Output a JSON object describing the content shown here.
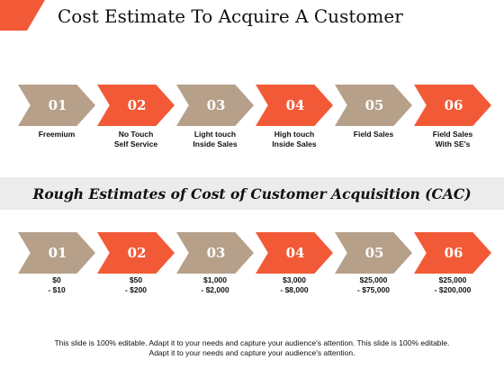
{
  "title": "Cost Estimate To Acquire A Customer",
  "colors": {
    "tan": "#b6a08a",
    "orange": "#f25a37",
    "band": "#ececec"
  },
  "row1": {
    "chevrons": [
      {
        "num": "01",
        "color": "tan"
      },
      {
        "num": "02",
        "color": "orange"
      },
      {
        "num": "03",
        "color": "tan"
      },
      {
        "num": "04",
        "color": "orange"
      },
      {
        "num": "05",
        "color": "tan"
      },
      {
        "num": "06",
        "color": "orange"
      }
    ],
    "labels": [
      {
        "l1": "Freemium",
        "l2": ""
      },
      {
        "l1": "No Touch",
        "l2": "Self Service"
      },
      {
        "l1": "Light touch",
        "l2": "Inside Sales"
      },
      {
        "l1": "High touch",
        "l2": "Inside Sales"
      },
      {
        "l1": "Field Sales",
        "l2": ""
      },
      {
        "l1": "Field Sales",
        "l2": "With SE's"
      }
    ]
  },
  "section_title": "Rough Estimates of Cost of Customer Acquisition (CAC)",
  "row2": {
    "chevrons": [
      {
        "num": "01",
        "color": "tan"
      },
      {
        "num": "02",
        "color": "orange"
      },
      {
        "num": "03",
        "color": "tan"
      },
      {
        "num": "04",
        "color": "orange"
      },
      {
        "num": "05",
        "color": "tan"
      },
      {
        "num": "06",
        "color": "orange"
      }
    ],
    "labels": [
      {
        "l1": "$0",
        "l2": "- $10"
      },
      {
        "l1": "$50",
        "l2": "- $200"
      },
      {
        "l1": "$1,000",
        "l2": "- $2,000"
      },
      {
        "l1": "$3,000",
        "l2": "- $8,000"
      },
      {
        "l1": "$25,000",
        "l2": "- $75,000"
      },
      {
        "l1": "$25,000",
        "l2": "- $200,000"
      }
    ]
  },
  "footer": {
    "line1": "This slide is 100% editable. Adapt it to your needs and capture your audience's attention. This slide is 100% editable.",
    "line2": "Adapt it to your needs and capture your audience's attention."
  }
}
